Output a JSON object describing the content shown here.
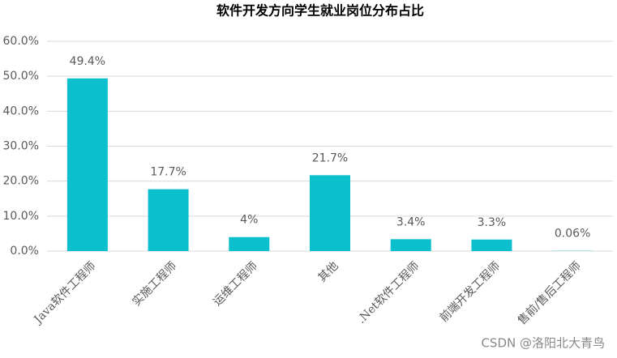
{
  "chart_data": {
    "type": "bar",
    "title": "软件开发方向学生就业岗位分布占比",
    "categories": [
      "Java软件工程师",
      "实施工程师",
      "运维工程师",
      "其他",
      ".Net软件工程师",
      "前端开发工程师",
      "售前/售后工程师"
    ],
    "values": [
      49.4,
      17.7,
      4,
      21.7,
      3.4,
      3.3,
      0.06
    ],
    "value_labels": [
      "49.4%",
      "17.7%",
      "4%",
      "21.7%",
      "3.4%",
      "3.3%",
      "0.06%"
    ],
    "color": "#0bbfcc",
    "ylim": [
      0,
      60
    ],
    "yticks": [
      {
        "value": 0,
        "label": "0.0%"
      },
      {
        "value": 10,
        "label": "10.0%"
      },
      {
        "value": 20,
        "label": "20.0%"
      },
      {
        "value": 30,
        "label": "30.0%"
      },
      {
        "value": 40,
        "label": "40.0%"
      },
      {
        "value": 50,
        "label": "50.0%"
      },
      {
        "value": 60,
        "label": "60.0%"
      }
    ],
    "grid": true,
    "annotation": "CSDN @洛阳北大青鸟"
  }
}
